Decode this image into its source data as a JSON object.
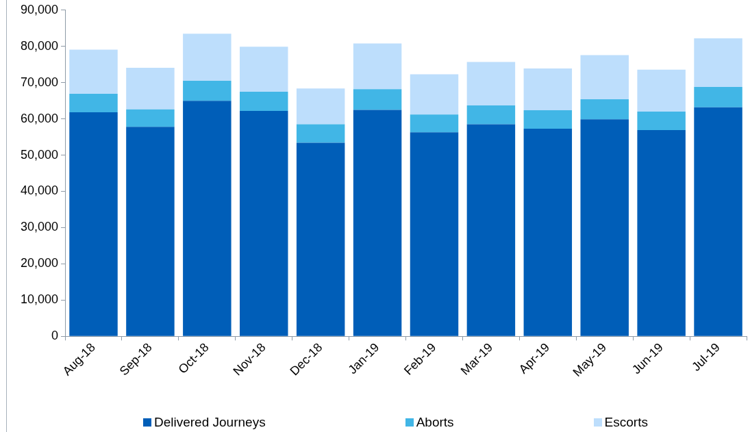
{
  "chart_data": {
    "type": "bar",
    "stacked": true,
    "categories": [
      "Aug-18",
      "Sep-18",
      "Oct-18",
      "Nov-18",
      "Dec-18",
      "Jan-19",
      "Feb-19",
      "Mar-19",
      "Apr-19",
      "May-19",
      "Jun-19",
      "Jul-19"
    ],
    "series": [
      {
        "name": "Delivered Journeys",
        "color": "#005eb8",
        "values": [
          61800,
          57800,
          65000,
          62200,
          53400,
          62500,
          56300,
          58500,
          57300,
          59900,
          56900,
          63200
        ]
      },
      {
        "name": "Aborts",
        "color": "#41b6e6",
        "values": [
          5100,
          4800,
          5500,
          5300,
          5100,
          5700,
          4900,
          5200,
          5100,
          5500,
          5100,
          5600
        ]
      },
      {
        "name": "Escorts",
        "color": "#bddefc",
        "values": [
          12200,
          11500,
          13000,
          12400,
          9900,
          12600,
          11100,
          12000,
          11500,
          12200,
          11600,
          13400
        ]
      }
    ],
    "ylim": [
      0,
      90000
    ],
    "yticks": [
      0,
      {
        "value": 10000,
        "label": "10,000"
      },
      {
        "value": 20000,
        "label": "20,000"
      },
      {
        "value": 30000,
        "label": "30,000"
      },
      {
        "value": 40000,
        "label": "40,000"
      },
      {
        "value": 50000,
        "label": "50,000"
      },
      {
        "value": 60000,
        "label": "60,000"
      },
      {
        "value": 70000,
        "label": "70,000"
      },
      {
        "value": 80000,
        "label": "80,000"
      },
      {
        "value": 90000,
        "label": "90,000"
      }
    ],
    "grid": false,
    "legend": "bottom"
  }
}
